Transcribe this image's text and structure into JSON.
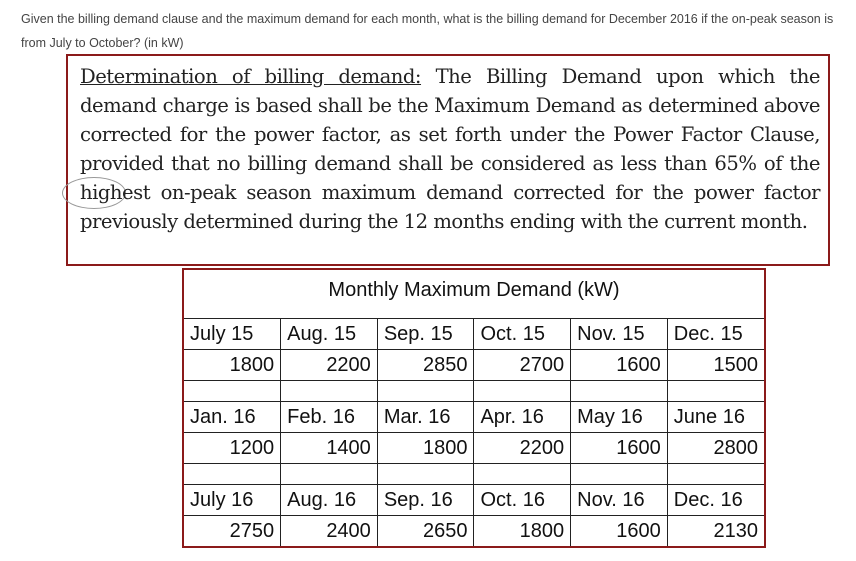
{
  "question": "Given the billing demand clause and the maximum demand for each month, what is the billing demand for December 2016 if the on-peak season is from July to October? (in kW)",
  "clause": {
    "heading": "Determination of billing demand:",
    "body": "The Billing Demand upon which the demand charge is based shall be the Maximum Demand as determined above corrected for the power factor, as set forth under the Power Factor Clause, provided that no billing demand shall be considered as less than 65% of the highest on-peak season maximum demand corrected for the power factor previously determined during the 12 months ending with the current month."
  },
  "table": {
    "title": "Monthly Maximum Demand (kW)",
    "groups": [
      {
        "months": [
          "July 15",
          "Aug. 15",
          "Sep. 15",
          "Oct. 15",
          "Nov. 15",
          "Dec. 15"
        ],
        "values": [
          "1800",
          "2200",
          "2850",
          "2700",
          "1600",
          "1500"
        ]
      },
      {
        "months": [
          "Jan. 16",
          "Feb. 16",
          "Mar. 16",
          "Apr. 16",
          "May 16",
          "June 16"
        ],
        "values": [
          "1200",
          "1400",
          "1800",
          "2200",
          "1600",
          "2800"
        ]
      },
      {
        "months": [
          "July 16",
          "Aug. 16",
          "Sep. 16",
          "Oct. 16",
          "Nov. 16",
          "Dec. 16"
        ],
        "values": [
          "2750",
          "2400",
          "2650",
          "1800",
          "1600",
          "2130"
        ]
      }
    ]
  },
  "colors": {
    "border": "#8b1a1a"
  }
}
